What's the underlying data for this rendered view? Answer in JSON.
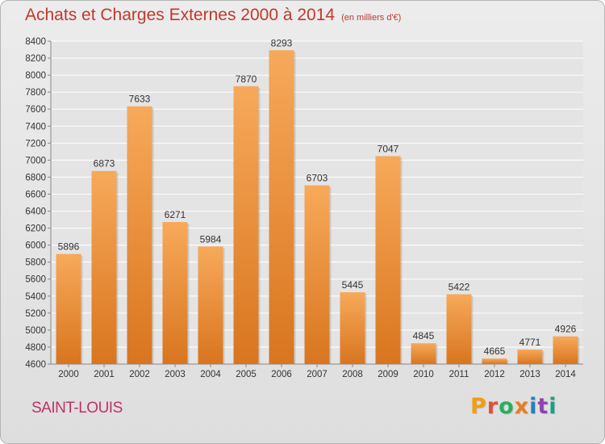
{
  "header": {
    "title": "Achats et Charges Externes 2000 à 2014",
    "subtitle": "(en milliers d'€)"
  },
  "footer": {
    "city": "SAINT-LOUIS",
    "logo_text": "Proxiti",
    "logo_colors": [
      "#f39c12",
      "#e74c3c",
      "#27ae60",
      "#e67e22",
      "#2980b9",
      "#8e44ad",
      "#16a085"
    ]
  },
  "colors": {
    "bar_light": "#f7a95a",
    "bar_dark": "#d9751f",
    "title": "#c0392b",
    "city": "#c0306a"
  },
  "chart_data": {
    "type": "bar",
    "title": "Achats et Charges Externes 2000 à 2014",
    "subtitle": "(en milliers d'€)",
    "categories": [
      "2000",
      "2001",
      "2002",
      "2003",
      "2004",
      "2005",
      "2006",
      "2007",
      "2008",
      "2009",
      "2010",
      "2011",
      "2012",
      "2013",
      "2014"
    ],
    "values": [
      5896,
      6873,
      7633,
      6271,
      5984,
      7870,
      8293,
      6703,
      5445,
      7047,
      4845,
      5422,
      4665,
      4771,
      4926
    ],
    "ylim": [
      4600,
      8400
    ],
    "yticks": [
      4600,
      4800,
      5000,
      5200,
      5400,
      5600,
      5800,
      6000,
      6200,
      6400,
      6600,
      6800,
      7000,
      7200,
      7400,
      7600,
      7800,
      8000,
      8200,
      8400
    ],
    "grid": true,
    "xlabel": "",
    "ylabel": ""
  }
}
